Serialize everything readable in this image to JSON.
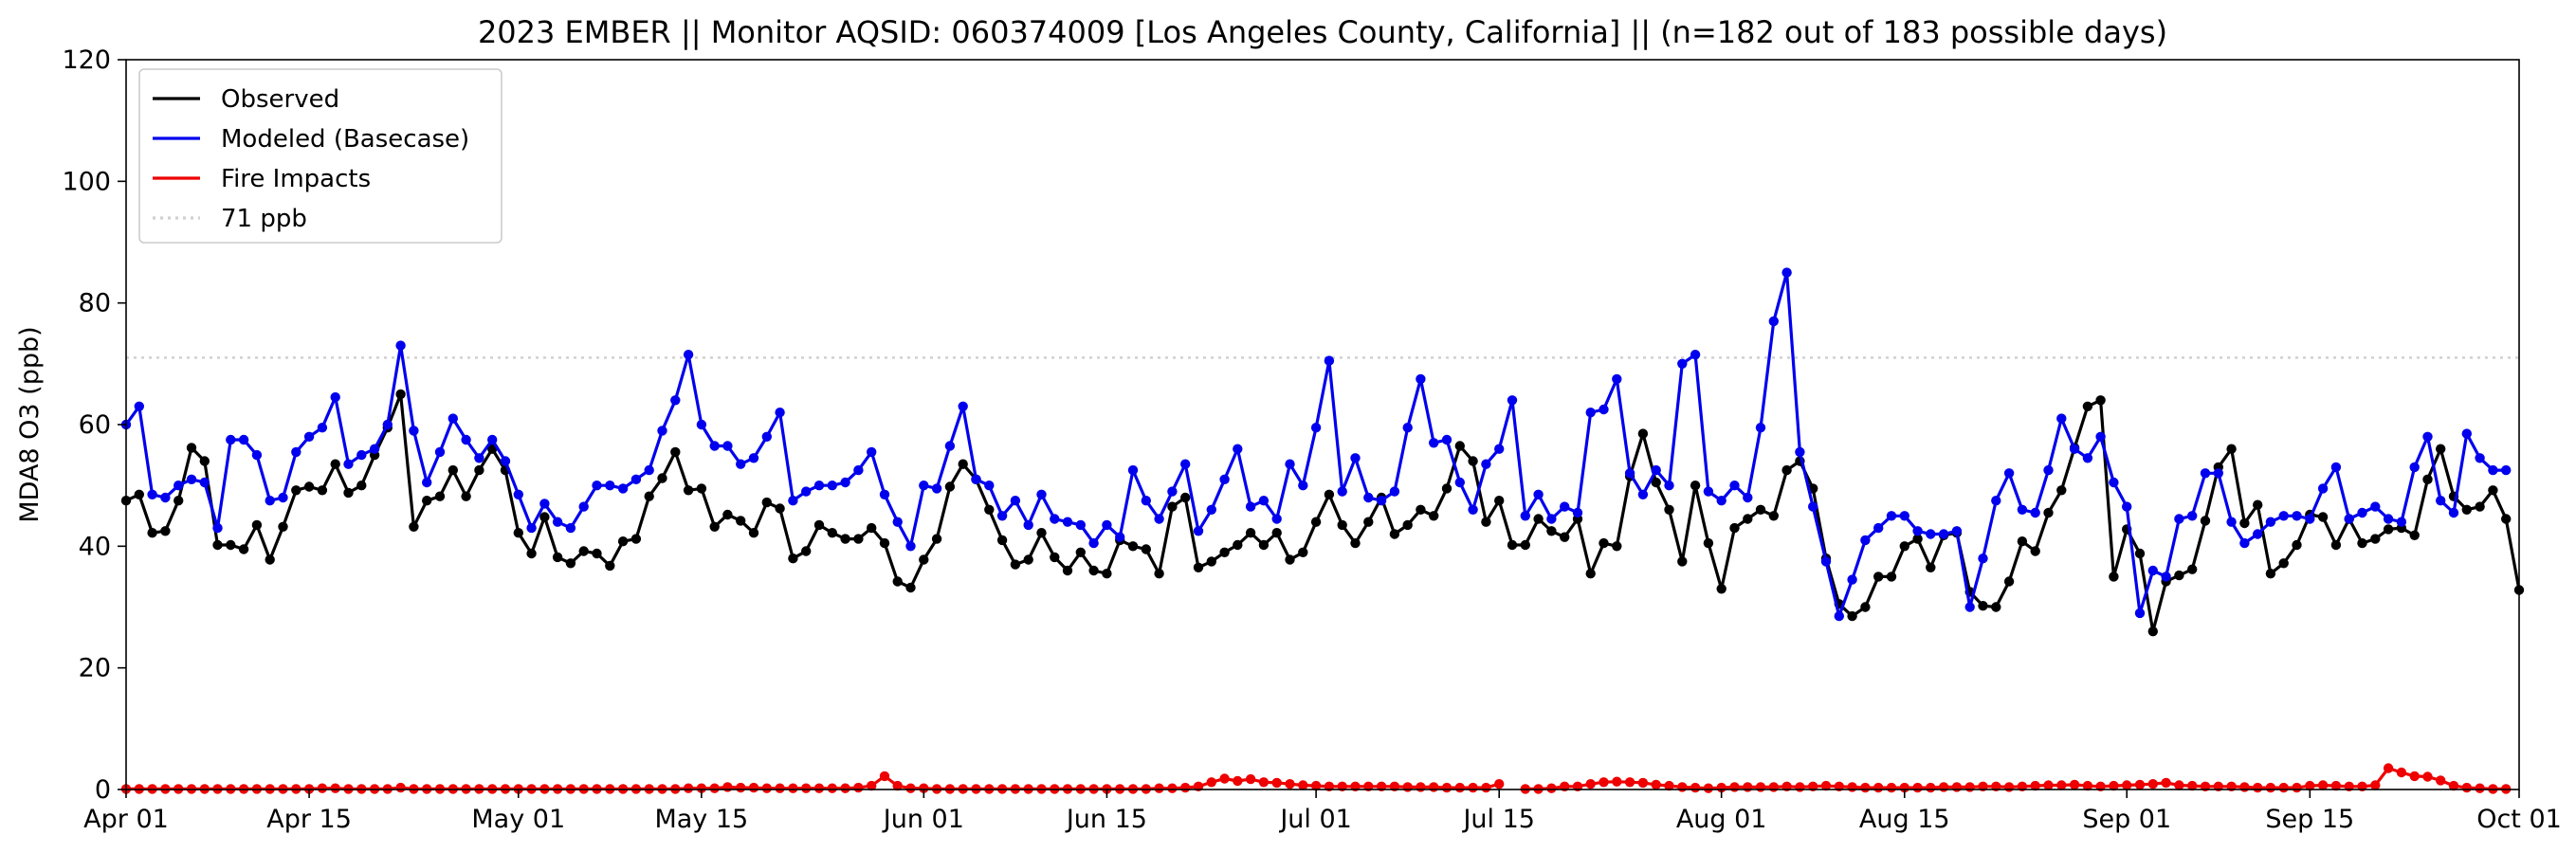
{
  "chart_data": {
    "type": "line",
    "title": "2023 EMBER || Monitor AQSID: 060374009 [Los Angeles County, California] || (n=182 out of 183 possible days)",
    "xlabel": "",
    "ylabel": "MDA8 O3 (ppb)",
    "start_date": "2023-04-01",
    "x_ticks": [
      {
        "day": 0,
        "label": "Apr 01"
      },
      {
        "day": 14,
        "label": "Apr 15"
      },
      {
        "day": 30,
        "label": "May 01"
      },
      {
        "day": 44,
        "label": "May 15"
      },
      {
        "day": 61,
        "label": "Jun 01"
      },
      {
        "day": 75,
        "label": "Jun 15"
      },
      {
        "day": 91,
        "label": "Jul 01"
      },
      {
        "day": 105,
        "label": "Jul 15"
      },
      {
        "day": 122,
        "label": "Aug 01"
      },
      {
        "day": 136,
        "label": "Aug 15"
      },
      {
        "day": 153,
        "label": "Sep 01"
      },
      {
        "day": 167,
        "label": "Sep 15"
      },
      {
        "day": 183,
        "label": "Oct 01"
      }
    ],
    "xlim": [
      0,
      183
    ],
    "ylim": [
      0,
      120
    ],
    "y_ticks": [
      0,
      20,
      40,
      60,
      80,
      100,
      120
    ],
    "grid": false,
    "legend_position": "top-left",
    "threshold": {
      "value": 71,
      "label": "71 ppb",
      "color": "#d0d0d0"
    },
    "series": [
      {
        "name": "Observed",
        "color": "#000000",
        "values": [
          47.5,
          48.5,
          42.2,
          42.5,
          47.5,
          56.2,
          54,
          40.2,
          40.2,
          39.5,
          43.5,
          37.8,
          43.2,
          49.2,
          49.8,
          49.2,
          53.5,
          48.8,
          50,
          55,
          59.5,
          65,
          43.2,
          47.5,
          48.2,
          52.5,
          48.2,
          52.5,
          56,
          52.5,
          42.2,
          38.8,
          44.8,
          38.2,
          37.2,
          39.2,
          38.8,
          36.8,
          40.8,
          41.2,
          48.2,
          51.2,
          55.5,
          49.2,
          49.5,
          43.2,
          45.2,
          44.2,
          42.2,
          47.2,
          46.2,
          38,
          39.2,
          43.5,
          42.2,
          41.2,
          41.2,
          43,
          40.5,
          34.2,
          33.2,
          37.8,
          41.2,
          49.8,
          53.5,
          51,
          46,
          41,
          37,
          37.8,
          42.2,
          38.2,
          36,
          39,
          36,
          35.5,
          41,
          40,
          39.5,
          35.5,
          46.5,
          48,
          36.5,
          37.5,
          39,
          40.2,
          42.2,
          40.2,
          42.2,
          37.8,
          39,
          44,
          48.5,
          43.5,
          40.5,
          44,
          48,
          42,
          43.5,
          46,
          45,
          49.5,
          56.5,
          54,
          44,
          47.5,
          40.2,
          40.2,
          44.5,
          42.5,
          41.5,
          44.5,
          35.5,
          40.5,
          40,
          51.5,
          58.5,
          50.5,
          46,
          37.5,
          50,
          40.5,
          33,
          43,
          44.5,
          46,
          45,
          52.5,
          54,
          49.5,
          38,
          30.5,
          28.5,
          30,
          35,
          35,
          40,
          41.2,
          36.5,
          41.8,
          42.2,
          32.5,
          30.2,
          30,
          34.2,
          40.8,
          39.2,
          45.5,
          49.2,
          56.2,
          63,
          64,
          35,
          42.8,
          38.8,
          26,
          34.2,
          35.2,
          36.2,
          44.2,
          53,
          56,
          43.8,
          46.8,
          35.5,
          37.2,
          40.2,
          45.2,
          44.8,
          40.2,
          44.5,
          40.5,
          41.2,
          42.8,
          43,
          41.8,
          51,
          56,
          48.2,
          46,
          46.5,
          49.2,
          44.5,
          32.8
        ]
      },
      {
        "name": "Modeled (Basecase)",
        "color": "#0000ee",
        "values": [
          60,
          63,
          48.5,
          48,
          50,
          51,
          50.5,
          43,
          57.5,
          57.5,
          55,
          47.5,
          48,
          55.5,
          58,
          59.5,
          64.5,
          53.5,
          55,
          56,
          60,
          73,
          59,
          50.5,
          55.5,
          61,
          57.5,
          54.5,
          57.5,
          54,
          48.5,
          43,
          47,
          44,
          43,
          46.5,
          50,
          50,
          49.5,
          51,
          52.5,
          59,
          64,
          71.5,
          60,
          56.5,
          56.5,
          53.5,
          54.5,
          58,
          62,
          47.5,
          49,
          50,
          50,
          50.5,
          52.5,
          55.5,
          48.5,
          44,
          40,
          50,
          49.5,
          56.5,
          63,
          51,
          50,
          45,
          47.5,
          43.5,
          48.5,
          44.5,
          44,
          43.5,
          40.5,
          43.5,
          41.5,
          52.5,
          47.5,
          44.5,
          49,
          53.5,
          42.5,
          46,
          51,
          56,
          46.5,
          47.5,
          44.5,
          53.5,
          50,
          59.5,
          70.5,
          49,
          54.5,
          48,
          47.5,
          49,
          59.5,
          67.5,
          57,
          57.5,
          50.5,
          46,
          53.5,
          56,
          64,
          45,
          48.5,
          44.5,
          46.5,
          45.5,
          62,
          62.5,
          67.5,
          52,
          48.5,
          52.5,
          50,
          70,
          71.5,
          49,
          47.5,
          50,
          48,
          59.5,
          77,
          85,
          55.5,
          46.5,
          37.5,
          28.5,
          34.5,
          41,
          43,
          45,
          45,
          42.5,
          42,
          42,
          42.5,
          30,
          38,
          47.5,
          52,
          46,
          45.5,
          52.5,
          61,
          56,
          54.5,
          58,
          50.5,
          46.5,
          29,
          36,
          35,
          44.5,
          45,
          52,
          52,
          44,
          40.5,
          42,
          44,
          45,
          45,
          44.5,
          49.5,
          53,
          44.5,
          45.5,
          46.5,
          44.5,
          44,
          53,
          58,
          47.5,
          45.5,
          58.5,
          54.5,
          52.5,
          52.5
        ]
      },
      {
        "name": "Fire Impacts",
        "color": "#ee0000",
        "values": [
          0.1,
          0.1,
          0.1,
          0.1,
          0.1,
          0.1,
          0.1,
          0.1,
          0.1,
          0.1,
          0.1,
          0.1,
          0.1,
          0.1,
          0.1,
          0.2,
          0.2,
          0.1,
          0.1,
          0.1,
          0.1,
          0.3,
          0.1,
          0.1,
          0.1,
          0.1,
          0.1,
          0.1,
          0.1,
          0.1,
          0.1,
          0.1,
          0.1,
          0.1,
          0.1,
          0.1,
          0.1,
          0.1,
          0.1,
          0.1,
          0.1,
          0.1,
          0.1,
          0.2,
          0.2,
          0.2,
          0.4,
          0.3,
          0.3,
          0.2,
          0.2,
          0.2,
          0.2,
          0.2,
          0.2,
          0.2,
          0.3,
          0.6,
          2.2,
          0.6,
          0.2,
          0.2,
          0.1,
          0.1,
          0.1,
          0.1,
          0.1,
          0.1,
          0.1,
          0.1,
          0.1,
          0.1,
          0.1,
          0.1,
          0.1,
          0.1,
          0.1,
          0.1,
          0.1,
          0.2,
          0.2,
          0.3,
          0.5,
          1.2,
          1.8,
          1.4,
          1.7,
          1.2,
          1.1,
          0.9,
          0.7,
          0.6,
          0.5,
          0.5,
          0.5,
          0.5,
          0.5,
          0.5,
          0.4,
          0.4,
          0.4,
          0.3,
          0.3,
          0.3,
          0.3,
          0.9,
          null,
          0.1,
          0.1,
          0.2,
          0.5,
          0.5,
          0.9,
          1.2,
          1.3,
          1.2,
          1.1,
          0.8,
          0.6,
          0.4,
          0.3,
          0.2,
          0.3,
          0.4,
          0.4,
          0.4,
          0.4,
          0.5,
          0.4,
          0.5,
          0.6,
          0.5,
          0.4,
          0.3,
          0.3,
          0.3,
          0.3,
          0.3,
          0.3,
          0.4,
          0.4,
          0.4,
          0.5,
          0.5,
          0.4,
          0.5,
          0.6,
          0.7,
          0.7,
          0.8,
          0.6,
          0.5,
          0.6,
          0.7,
          0.8,
          0.9,
          1.1,
          0.7,
          0.6,
          0.5,
          0.5,
          0.5,
          0.4,
          0.3,
          0.3,
          0.3,
          0.3,
          0.6,
          0.7,
          0.6,
          0.5,
          0.5,
          0.7,
          3.5,
          2.8,
          2.2,
          2.1,
          1.5,
          0.6,
          0.3,
          0.2,
          0.1,
          0.1
        ]
      }
    ]
  }
}
